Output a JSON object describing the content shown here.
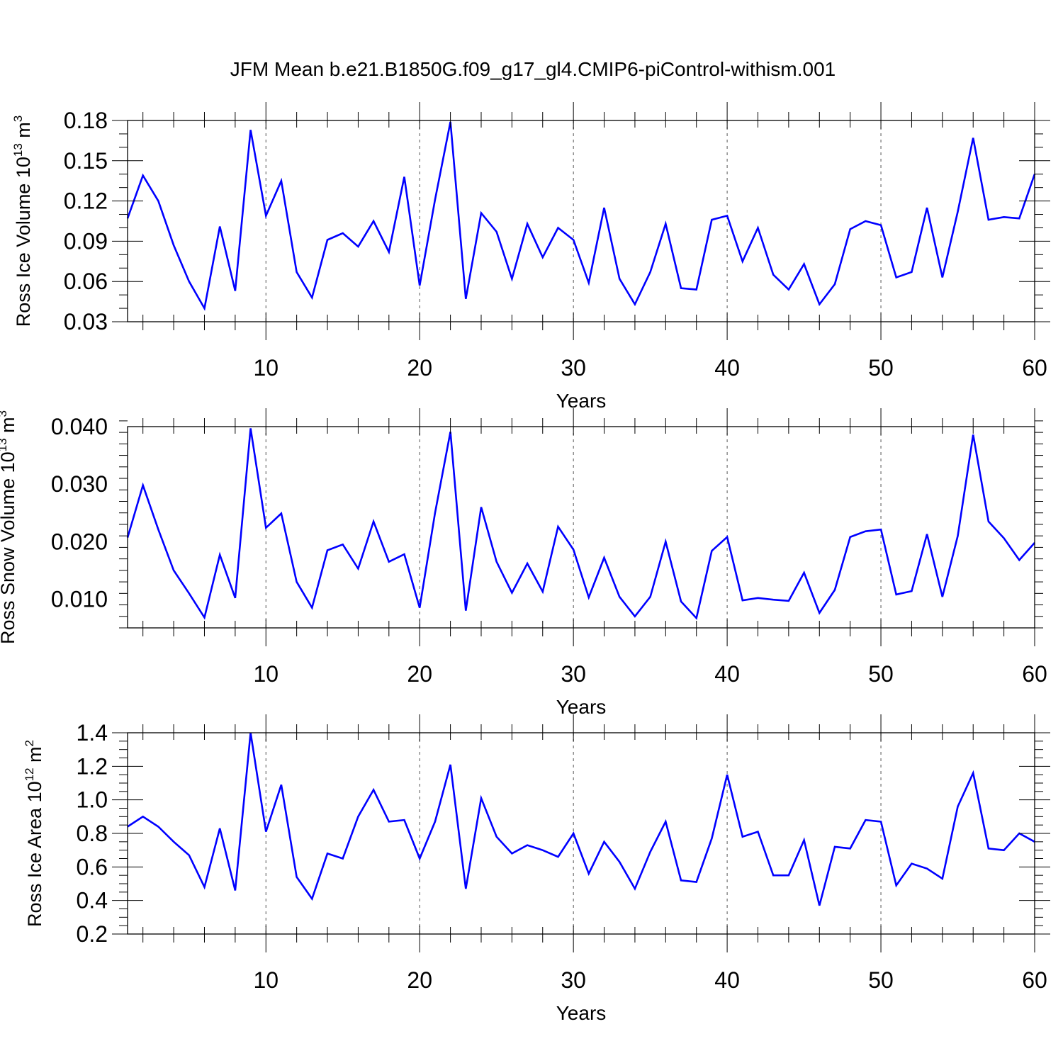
{
  "title": "JFM Mean b.e21.B1850G.f09_g17_gl4.CMIP6-piControl-withism.001",
  "colors": {
    "line": "#0000ff",
    "axis": "#000000",
    "grid": "#555555"
  },
  "chart_data": [
    {
      "type": "line",
      "name": "ross-ice-volume",
      "ylabel_main": "Ross Ice Volume 10",
      "ylabel_exp": "13",
      "ylabel_unit": " m",
      "ylabel_unit_exp": "3",
      "xlabel": "Years",
      "xlim": [
        1,
        60
      ],
      "ylim": [
        0.03,
        0.18
      ],
      "yticks": [
        0.03,
        0.06,
        0.09,
        0.12,
        0.15,
        0.18
      ],
      "ytick_labels": [
        "0.03",
        "0.06",
        "0.09",
        "0.12",
        "0.15",
        "0.18"
      ],
      "yminor_step": 0.01,
      "xticks": [
        10,
        20,
        30,
        40,
        50,
        60
      ],
      "xtick_labels": [
        "10",
        "20",
        "30",
        "40",
        "50",
        "60"
      ],
      "vgrid": [
        10,
        20,
        30,
        40,
        50
      ],
      "x": [
        1,
        2,
        3,
        4,
        5,
        6,
        7,
        8,
        9,
        10,
        11,
        12,
        13,
        14,
        15,
        16,
        17,
        18,
        19,
        20,
        21,
        22,
        23,
        24,
        25,
        26,
        27,
        28,
        29,
        30,
        31,
        32,
        33,
        34,
        35,
        36,
        37,
        38,
        39,
        40,
        41,
        42,
        43,
        44,
        45,
        46,
        47,
        48,
        49,
        50,
        51,
        52,
        53,
        54,
        55,
        56,
        57,
        58,
        59,
        60
      ],
      "values": [
        0.107,
        0.139,
        0.12,
        0.087,
        0.06,
        0.04,
        0.101,
        0.053,
        0.173,
        0.109,
        0.135,
        0.067,
        0.048,
        0.091,
        0.096,
        0.086,
        0.105,
        0.082,
        0.138,
        0.057,
        0.121,
        0.179,
        0.047,
        0.111,
        0.097,
        0.062,
        0.103,
        0.078,
        0.1,
        0.091,
        0.059,
        0.115,
        0.062,
        0.043,
        0.067,
        0.103,
        0.055,
        0.054,
        0.106,
        0.109,
        0.075,
        0.1,
        0.065,
        0.054,
        0.073,
        0.043,
        0.058,
        0.099,
        0.105,
        0.102,
        0.063,
        0.067,
        0.115,
        0.063,
        0.112,
        0.167,
        0.106,
        0.108,
        0.107,
        0.14
      ]
    },
    {
      "type": "line",
      "name": "ross-snow-volume",
      "ylabel_main": "Ross Snow Volume 10",
      "ylabel_exp": "13",
      "ylabel_unit": " m",
      "ylabel_unit_exp": "3",
      "xlabel": "Years",
      "xlim": [
        1,
        60
      ],
      "ylim": [
        0.005,
        0.04
      ],
      "yticks": [
        0.01,
        0.02,
        0.03,
        0.04
      ],
      "ytick_labels": [
        "0.010",
        "0.020",
        "0.030",
        "0.040"
      ],
      "yminor_step": 0.002,
      "xticks": [
        10,
        20,
        30,
        40,
        50,
        60
      ],
      "xtick_labels": [
        "10",
        "20",
        "30",
        "40",
        "50",
        "60"
      ],
      "vgrid": [
        10,
        20,
        30,
        40,
        50
      ],
      "x": [
        1,
        2,
        3,
        4,
        5,
        6,
        7,
        8,
        9,
        10,
        11,
        12,
        13,
        14,
        15,
        16,
        17,
        18,
        19,
        20,
        21,
        22,
        23,
        24,
        25,
        26,
        27,
        28,
        29,
        30,
        31,
        32,
        33,
        34,
        35,
        36,
        37,
        38,
        39,
        40,
        41,
        42,
        43,
        44,
        45,
        46,
        47,
        48,
        49,
        50,
        51,
        52,
        53,
        54,
        55,
        56,
        57,
        58,
        59,
        60
      ],
      "values": [
        0.0207,
        0.0298,
        0.0221,
        0.015,
        0.011,
        0.0068,
        0.0177,
        0.0102,
        0.0397,
        0.0224,
        0.0249,
        0.013,
        0.0085,
        0.0185,
        0.0195,
        0.0153,
        0.0235,
        0.0165,
        0.0178,
        0.0085,
        0.025,
        0.0391,
        0.008,
        0.026,
        0.0165,
        0.0111,
        0.0162,
        0.0113,
        0.0226,
        0.0186,
        0.0103,
        0.0172,
        0.0104,
        0.007,
        0.0104,
        0.02,
        0.0096,
        0.0067,
        0.0184,
        0.0208,
        0.0098,
        0.0102,
        0.0099,
        0.0097,
        0.0146,
        0.0076,
        0.0116,
        0.0208,
        0.0218,
        0.0221,
        0.0108,
        0.0114,
        0.0213,
        0.0104,
        0.021,
        0.0386,
        0.0235,
        0.0206,
        0.0168,
        0.0198
      ]
    },
    {
      "type": "line",
      "name": "ross-ice-area",
      "ylabel_main": "Ross Ice Area 10",
      "ylabel_exp": "12",
      "ylabel_unit": " m",
      "ylabel_unit_exp": "2",
      "xlabel": "Years",
      "xlim": [
        1,
        60
      ],
      "ylim": [
        0.2,
        1.4
      ],
      "yticks": [
        0.2,
        0.4,
        0.6,
        0.8,
        1.0,
        1.2,
        1.4
      ],
      "ytick_labels": [
        "0.2",
        "0.4",
        "0.6",
        "0.8",
        "1.0",
        "1.2",
        "1.4"
      ],
      "yminor_step": 0.05,
      "xticks": [
        10,
        20,
        30,
        40,
        50,
        60
      ],
      "xtick_labels": [
        "10",
        "20",
        "30",
        "40",
        "50",
        "60"
      ],
      "vgrid": [
        10,
        20,
        30,
        40,
        50
      ],
      "x": [
        1,
        2,
        3,
        4,
        5,
        6,
        7,
        8,
        9,
        10,
        11,
        12,
        13,
        14,
        15,
        16,
        17,
        18,
        19,
        20,
        21,
        22,
        23,
        24,
        25,
        26,
        27,
        28,
        29,
        30,
        31,
        32,
        33,
        34,
        35,
        36,
        37,
        38,
        39,
        40,
        41,
        42,
        43,
        44,
        45,
        46,
        47,
        48,
        49,
        50,
        51,
        52,
        53,
        54,
        55,
        56,
        57,
        58,
        59,
        60
      ],
      "values": [
        0.84,
        0.9,
        0.84,
        0.75,
        0.67,
        0.48,
        0.83,
        0.46,
        1.4,
        0.81,
        1.09,
        0.54,
        0.41,
        0.68,
        0.65,
        0.9,
        1.06,
        0.87,
        0.88,
        0.65,
        0.87,
        1.21,
        0.47,
        1.01,
        0.78,
        0.68,
        0.73,
        0.7,
        0.66,
        0.8,
        0.56,
        0.75,
        0.63,
        0.47,
        0.69,
        0.87,
        0.52,
        0.51,
        0.77,
        1.15,
        0.78,
        0.81,
        0.55,
        0.55,
        0.76,
        0.37,
        0.72,
        0.71,
        0.88,
        0.87,
        0.49,
        0.62,
        0.59,
        0.53,
        0.96,
        1.16,
        0.71,
        0.7,
        0.8,
        0.75
      ]
    }
  ]
}
